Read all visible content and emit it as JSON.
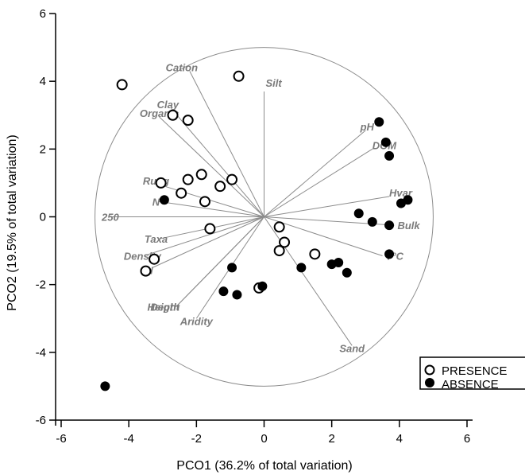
{
  "chart_data": {
    "type": "scatter",
    "xlabel": "PCO1 (36.2% of total variation)",
    "ylabel": "PCO2 (19.5% of total variation)",
    "xlim": [
      -6,
      6
    ],
    "ylim": [
      -6,
      6
    ],
    "xticks": [
      "-6",
      "-4",
      "-2",
      "0",
      "2",
      "4",
      "6"
    ],
    "yticks": [
      "-6",
      "-4",
      "-2",
      "0",
      "2",
      "4",
      "6"
    ],
    "grid": false,
    "legend_position": "bottom-right",
    "circle_radius": 5,
    "series": [
      {
        "name": "PRESENCE",
        "marker": "open-circle",
        "points": [
          [
            -4.2,
            3.9
          ],
          [
            -0.75,
            4.15
          ],
          [
            -2.7,
            3.0
          ],
          [
            -2.25,
            2.85
          ],
          [
            -3.05,
            1.0
          ],
          [
            -2.25,
            1.1
          ],
          [
            -1.85,
            1.25
          ],
          [
            -0.95,
            1.1
          ],
          [
            -1.3,
            0.9
          ],
          [
            -2.45,
            0.7
          ],
          [
            -1.75,
            0.45
          ],
          [
            -1.6,
            -0.35
          ],
          [
            -3.25,
            -1.25
          ],
          [
            -3.5,
            -1.6
          ],
          [
            -0.15,
            -2.1
          ],
          [
            0.45,
            -0.3
          ],
          [
            0.6,
            -0.75
          ],
          [
            0.45,
            -1.0
          ],
          [
            1.5,
            -1.1
          ]
        ]
      },
      {
        "name": "ABSENCE",
        "marker": "filled-circle",
        "points": [
          [
            3.4,
            2.8
          ],
          [
            3.6,
            2.2
          ],
          [
            3.7,
            1.8
          ],
          [
            4.25,
            0.5
          ],
          [
            4.05,
            0.4
          ],
          [
            2.8,
            0.1
          ],
          [
            3.2,
            -0.15
          ],
          [
            3.7,
            -0.25
          ],
          [
            3.7,
            -1.1
          ],
          [
            -2.95,
            0.5
          ],
          [
            -0.95,
            -1.5
          ],
          [
            -1.2,
            -2.2
          ],
          [
            -0.8,
            -2.3
          ],
          [
            -0.05,
            -2.05
          ],
          [
            1.1,
            -1.5
          ],
          [
            2.0,
            -1.4
          ],
          [
            2.2,
            -1.35
          ],
          [
            2.45,
            -1.65
          ],
          [
            -4.7,
            -5.0
          ]
        ]
      }
    ],
    "vectors": [
      {
        "label": "Cation",
        "x": -2.2,
        "y": 4.3
      },
      {
        "label": "Silt",
        "x": 0.0,
        "y": 3.7
      },
      {
        "label": "Clay",
        "x": -2.75,
        "y": 3.2
      },
      {
        "label": "Organic",
        "x": -3.1,
        "y": 2.95
      },
      {
        "label": "pH",
        "x": 3.0,
        "y": 2.55
      },
      {
        "label": "DOM",
        "x": 3.2,
        "y": 2.0
      },
      {
        "label": "Rugg",
        "x": -3.1,
        "y": 0.95
      },
      {
        "label": "N",
        "x": -3.1,
        "y": 0.45
      },
      {
        "label": "Hvar",
        "x": 3.7,
        "y": 0.6
      },
      {
        "label": "250",
        "x": -4.5,
        "y": 0.0
      },
      {
        "label": "Bulk",
        "x": 3.85,
        "y": -0.25
      },
      {
        "label": "Taxa",
        "x": -3.1,
        "y": -0.65
      },
      {
        "label": "Density",
        "x": -3.55,
        "y": -1.15
      },
      {
        "label": "T°C",
        "x": 3.5,
        "y": -1.15
      },
      {
        "label": "N",
        "x": -3.3,
        "y": -1.5
      },
      {
        "label": "Height",
        "x": -2.6,
        "y": -2.65
      },
      {
        "label": "Depth",
        "x": -2.6,
        "y": -2.65
      },
      {
        "label": "Aridity",
        "x": -2.0,
        "y": -3.0
      },
      {
        "label": "Sand",
        "x": 2.6,
        "y": -3.8
      }
    ],
    "legend": [
      {
        "label": "PRESENCE",
        "marker": "open-circle"
      },
      {
        "label": "ABSENCE",
        "marker": "filled-circle"
      }
    ]
  }
}
